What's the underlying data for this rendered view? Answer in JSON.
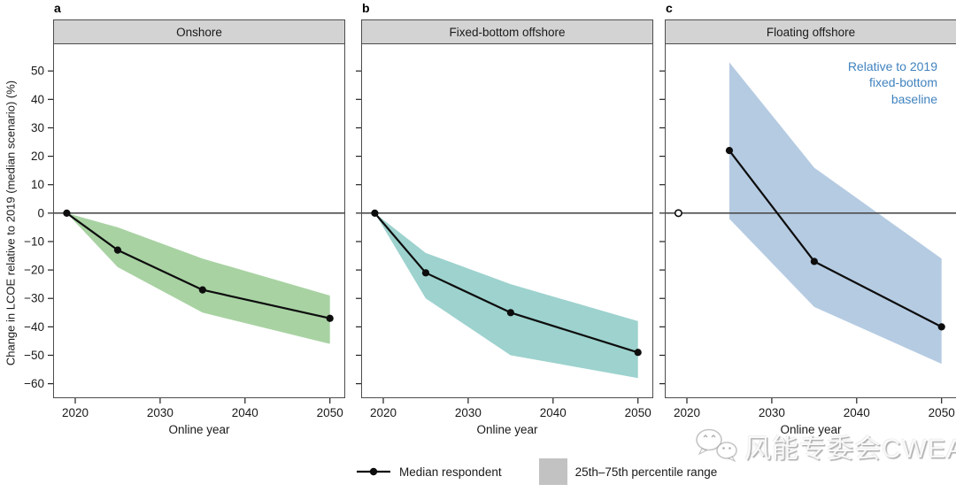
{
  "figure": {
    "y_axis_label": "Change in LCOE relative to 2019 (median scenario) (%)",
    "x_axis_label": "Online year"
  },
  "chart_data": [
    {
      "type": "line",
      "panel_letter": "a",
      "title": "Onshore",
      "x": [
        2019,
        2025,
        2035,
        2050
      ],
      "series": [
        {
          "name": "Median respondent",
          "values": [
            0,
            -13,
            -27,
            -37
          ]
        }
      ],
      "band": {
        "name": "25th–75th percentile range",
        "x": [
          2019,
          2025,
          2035,
          2050
        ],
        "upper": [
          0,
          -5,
          -16,
          -29
        ],
        "lower": [
          0,
          -19,
          -35,
          -46
        ],
        "color": "#a8d2a2"
      },
      "xticks": [
        2020,
        2030,
        2040,
        2050
      ],
      "yticks": [
        50,
        40,
        30,
        20,
        10,
        0,
        -10,
        -20,
        -30,
        -40,
        -50,
        -60
      ],
      "show_y_tick_labels": true,
      "xlabel": "Online year",
      "ylim": [
        -65.1,
        59.4
      ],
      "line_starts_at_index": 0,
      "open_first_point": false
    },
    {
      "type": "line",
      "panel_letter": "b",
      "title": "Fixed-bottom offshore",
      "x": [
        2019,
        2025,
        2035,
        2050
      ],
      "series": [
        {
          "name": "Median respondent",
          "values": [
            0,
            -21,
            -35,
            -49
          ]
        }
      ],
      "band": {
        "name": "25th–75th percentile range",
        "x": [
          2019,
          2025,
          2035,
          2050
        ],
        "upper": [
          0,
          -14,
          -25,
          -38
        ],
        "lower": [
          0,
          -30,
          -50,
          -58
        ],
        "color": "#9dd2ce"
      },
      "xticks": [
        2020,
        2030,
        2040,
        2050
      ],
      "yticks": [
        50,
        40,
        30,
        20,
        10,
        0,
        -10,
        -20,
        -30,
        -40,
        -50,
        -60
      ],
      "show_y_tick_labels": false,
      "xlabel": "Online year",
      "ylim": [
        -65.1,
        59.4
      ],
      "line_starts_at_index": 0,
      "open_first_point": false
    },
    {
      "type": "line",
      "panel_letter": "c",
      "title": "Floating offshore",
      "x": [
        2019,
        2025,
        2035,
        2050
      ],
      "series": [
        {
          "name": "Median respondent",
          "values": [
            0,
            22,
            -17,
            -40
          ]
        }
      ],
      "band": {
        "name": "25th–75th percentile range",
        "x": [
          2025,
          2035,
          2050
        ],
        "upper": [
          53,
          16,
          -16
        ],
        "lower": [
          -2,
          -33,
          -53
        ],
        "color": "#b5cbe2"
      },
      "xticks": [
        2020,
        2030,
        2040,
        2050
      ],
      "yticks": [
        50,
        40,
        30,
        20,
        10,
        0,
        -10,
        -20,
        -30,
        -40,
        -50,
        -60
      ],
      "show_y_tick_labels": false,
      "xlabel": "Online year",
      "ylim": [
        -65.1,
        59.4
      ],
      "line_starts_at_index": 1,
      "open_first_point": true,
      "annotation": {
        "lines": [
          "Relative to 2019",
          "fixed-bottom",
          "baseline"
        ],
        "color": "#4183bf"
      }
    }
  ],
  "legend": {
    "median_label": "Median respondent",
    "band_label": "25th–75th percentile range",
    "band_swatch_color": "#c2c2c2"
  },
  "watermark": {
    "icon": "wechat-icon",
    "text": "风能专委会CWEA"
  }
}
